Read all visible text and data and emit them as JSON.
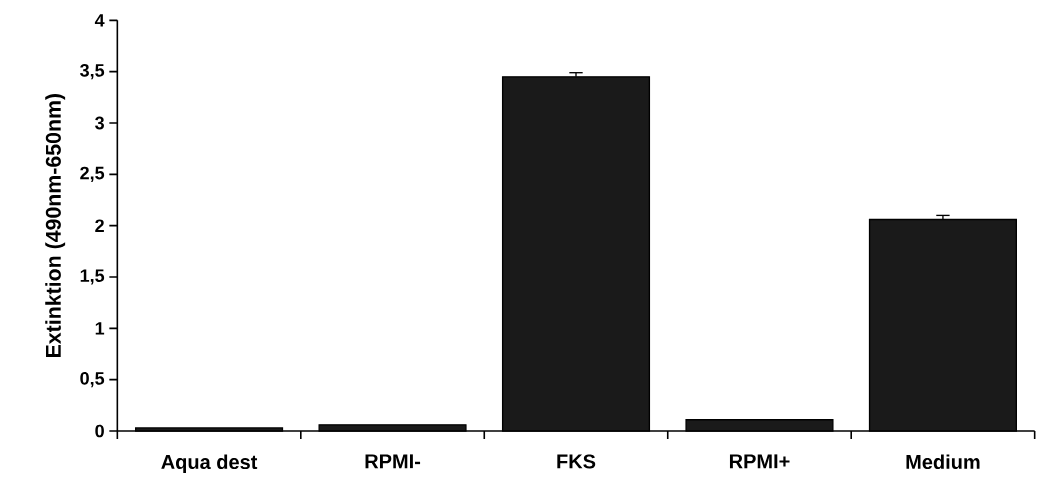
{
  "chart_data": {
    "type": "bar",
    "ylabel": "Extinktion (490nm-650nm)",
    "categories": [
      "Aqua dest",
      "RPMI-",
      "FKS",
      "RPMI+",
      "Medium"
    ],
    "values": [
      0.03,
      0.06,
      3.45,
      0.11,
      2.06
    ],
    "errors": [
      null,
      null,
      0.04,
      null,
      0.04
    ],
    "color": "#1a1a1a",
    "ylim": [
      0,
      4
    ],
    "yticks": [
      0,
      {
        "value": 0.5,
        "label": "0,5"
      },
      1,
      {
        "value": 1.5,
        "label": "1,5"
      },
      2,
      {
        "value": 2.5,
        "label": "2,5"
      },
      3,
      {
        "value": 3.5,
        "label": "3,5"
      },
      4
    ],
    "grid": false
  }
}
